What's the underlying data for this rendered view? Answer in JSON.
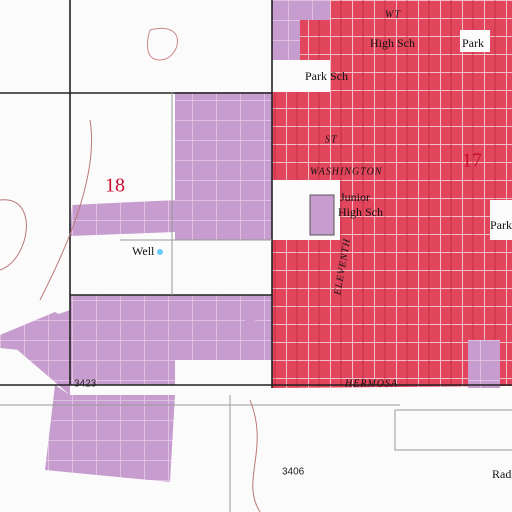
{
  "sections": [
    "18",
    "17"
  ],
  "streets": [
    "WASHINGTON",
    "HERMOSA",
    "ELEVENTH",
    "ST",
    "WT"
  ],
  "features": [
    "Well",
    "Junior",
    "High Sch",
    "High Sch",
    "Park Sch",
    "Park",
    "Park",
    "Rad"
  ],
  "elevations": [
    3423,
    3406
  ]
}
